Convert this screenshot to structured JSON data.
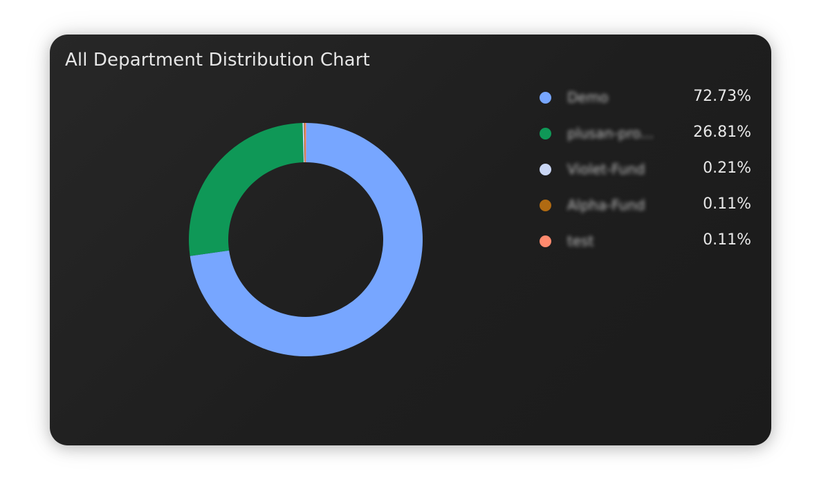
{
  "chart_data": {
    "type": "pie",
    "variant": "donut",
    "title": "All Department Distribution Chart",
    "categories": [
      "Demo",
      "plusan-pro...",
      "Violet-Fund",
      "Alpha-Fund",
      "test"
    ],
    "values": [
      72.73,
      26.81,
      0.21,
      0.11,
      0.11
    ],
    "value_labels": [
      "72.73%",
      "26.81%",
      "0.21%",
      "0.11%",
      "0.11%"
    ],
    "colors": [
      "#77a6ff",
      "#0f9857",
      "#c9d6f5",
      "#b06a12",
      "#ff8a6e"
    ],
    "legend_position": "right",
    "grid": false
  }
}
